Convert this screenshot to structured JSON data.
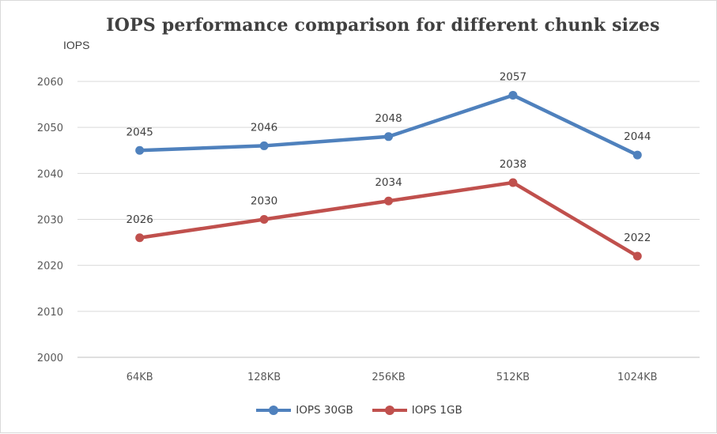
{
  "chart_data": {
    "type": "line",
    "title": "IOPS performance comparison for different chunk sizes",
    "ylabel": "IOPS",
    "xlabel": "",
    "categories": [
      "64KB",
      "128KB",
      "256KB",
      "512KB",
      "1024KB"
    ],
    "ylim": [
      2000,
      2060
    ],
    "yticks": [
      2000,
      2010,
      2020,
      2030,
      2040,
      2050,
      2060
    ],
    "grid": true,
    "legend_position": "bottom",
    "series": [
      {
        "name": "IOPS 30GB",
        "values": [
          2045,
          2046,
          2048,
          2057,
          2044
        ],
        "color": "#4f81bd"
      },
      {
        "name": "IOPS 1GB",
        "values": [
          2026,
          2030,
          2034,
          2038,
          2022
        ],
        "color": "#c0504d"
      }
    ]
  }
}
